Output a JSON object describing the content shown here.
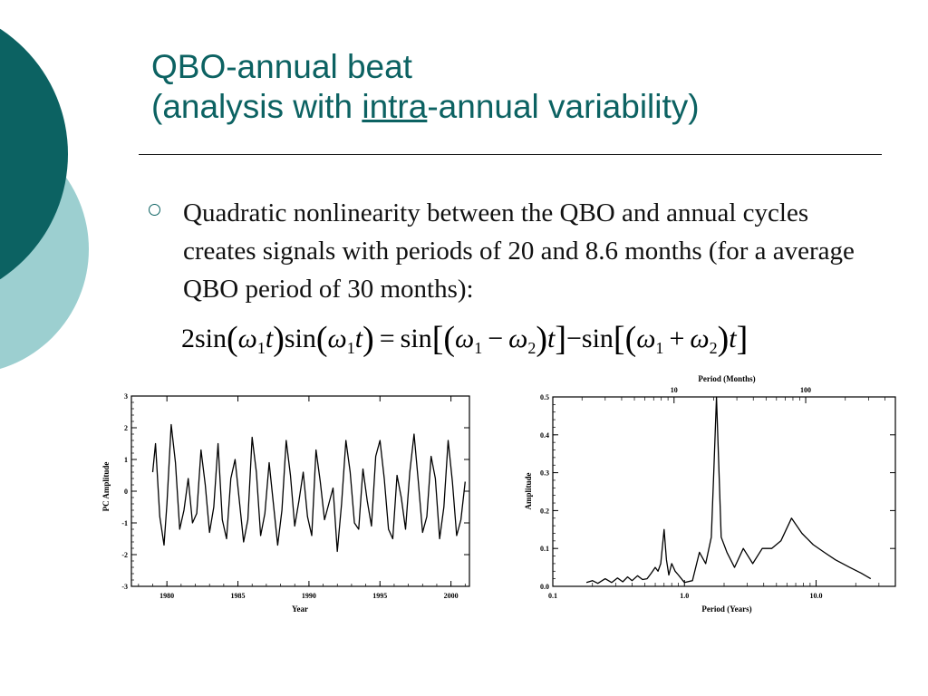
{
  "slide": {
    "title_line1": "QBO-annual beat",
    "title_line2_pre": "(analysis with ",
    "title_line2_u": "intra",
    "title_line2_post": "-annual variability)",
    "bullet": "Quadratic nonlinearity between the QBO and annual cycles creates signals with periods of 20 and 8.6 months (for a average QBO period of 30 months):",
    "equation": {
      "coef": "2",
      "sin": "sin",
      "omega": "ω",
      "t": "t",
      "sub1": "1",
      "sub2": "2",
      "equals": "=",
      "minus": "−",
      "plus": "+"
    },
    "colors": {
      "title": "#0c6262",
      "deco_dark": "#0c6262",
      "deco_light": "#9ccfd0"
    }
  },
  "chart_data": [
    {
      "type": "line",
      "xlabel": "Year",
      "ylabel": "PC Amplitude",
      "xlim": [
        1977.5,
        2001.3
      ],
      "ylim": [
        -3,
        3
      ],
      "xticks": [
        "1980",
        "1985",
        "1990",
        "1995",
        "2000"
      ],
      "xtick_values": [
        1980,
        1985,
        1990,
        1995,
        2000
      ],
      "yticks": [
        "3",
        "2",
        "1",
        "0",
        "-1",
        "-2",
        "-3"
      ],
      "ytick_values": [
        3,
        2,
        1,
        0,
        -1,
        -2,
        -3
      ],
      "x": [
        1979.0,
        1979.2,
        1979.5,
        1979.8,
        1980.0,
        1980.3,
        1980.6,
        1980.9,
        1981.2,
        1981.5,
        1981.8,
        1982.1,
        1982.4,
        1982.7,
        1983.0,
        1983.3,
        1983.6,
        1983.9,
        1984.2,
        1984.5,
        1984.8,
        1985.1,
        1985.4,
        1985.7,
        1986.0,
        1986.3,
        1986.6,
        1986.9,
        1987.2,
        1987.5,
        1987.8,
        1988.1,
        1988.4,
        1988.7,
        1989.0,
        1989.3,
        1989.6,
        1989.9,
        1990.2,
        1990.5,
        1990.8,
        1991.1,
        1991.4,
        1991.7,
        1992.0,
        1992.3,
        1992.6,
        1992.9,
        1993.2,
        1993.5,
        1993.8,
        1994.1,
        1994.4,
        1994.7,
        1995.0,
        1995.3,
        1995.6,
        1995.9,
        1996.2,
        1996.5,
        1996.8,
        1997.1,
        1997.4,
        1997.7,
        1998.0,
        1998.3,
        1998.6,
        1998.9,
        1999.2,
        1999.5,
        1999.8,
        2000.1,
        2000.4,
        2000.7,
        2001.0
      ],
      "values": [
        0.6,
        1.5,
        -0.8,
        -1.7,
        -0.4,
        2.1,
        0.9,
        -1.2,
        -0.6,
        0.4,
        -1.0,
        -0.7,
        1.3,
        0.2,
        -1.3,
        -0.5,
        1.5,
        -0.9,
        -1.5,
        0.4,
        1.0,
        -0.3,
        -1.6,
        -0.9,
        1.7,
        0.6,
        -1.4,
        -0.7,
        0.9,
        -0.4,
        -1.7,
        -0.6,
        1.6,
        0.5,
        -1.1,
        -0.3,
        0.6,
        -0.8,
        -1.4,
        1.3,
        0.3,
        -0.9,
        -0.4,
        0.1,
        -1.9,
        -0.4,
        1.6,
        0.6,
        -1.0,
        -1.2,
        0.7,
        -0.3,
        -1.1,
        1.1,
        1.6,
        0.4,
        -1.2,
        -1.5,
        0.5,
        -0.2,
        -1.2,
        0.6,
        1.8,
        0.3,
        -1.3,
        -0.8,
        1.1,
        0.4,
        -1.5,
        -0.5,
        1.6,
        0.3,
        -1.4,
        -0.9,
        0.3
      ]
    },
    {
      "type": "line",
      "title": "Period (Months)",
      "xlabel": "Period (Years)",
      "ylabel": "Amplitude",
      "xscale": "log",
      "xlim": [
        0.1,
        40
      ],
      "ylim": [
        0.0,
        0.5
      ],
      "xticks": [
        "0.1",
        "1.0",
        "10.0"
      ],
      "xtick_values": [
        0.1,
        1.0,
        10.0
      ],
      "top_xticks": [
        "10",
        "100"
      ],
      "top_xtick_values_months": [
        10,
        100
      ],
      "yticks": [
        "0.5",
        "0.4",
        "0.3",
        "0.2",
        "0.1",
        "0.0"
      ],
      "ytick_values": [
        0.5,
        0.4,
        0.3,
        0.2,
        0.1,
        0.0
      ],
      "x": [
        0.18,
        0.2,
        0.22,
        0.25,
        0.28,
        0.31,
        0.34,
        0.37,
        0.4,
        0.44,
        0.48,
        0.52,
        0.56,
        0.6,
        0.63,
        0.66,
        0.7,
        0.73,
        0.76,
        0.8,
        0.85,
        0.9,
        1.0,
        1.15,
        1.3,
        1.45,
        1.6,
        1.67,
        1.75,
        1.9,
        2.1,
        2.4,
        2.8,
        3.3,
        3.9,
        4.6,
        5.4,
        6.5,
        7.8,
        9.5,
        11.5,
        14,
        18,
        22,
        26
      ],
      "values": [
        0.01,
        0.015,
        0.008,
        0.02,
        0.01,
        0.022,
        0.012,
        0.025,
        0.015,
        0.028,
        0.018,
        0.02,
        0.035,
        0.05,
        0.04,
        0.06,
        0.15,
        0.07,
        0.03,
        0.06,
        0.04,
        0.03,
        0.01,
        0.015,
        0.09,
        0.06,
        0.13,
        0.3,
        0.5,
        0.13,
        0.09,
        0.05,
        0.1,
        0.06,
        0.1,
        0.1,
        0.12,
        0.18,
        0.14,
        0.11,
        0.09,
        0.07,
        0.05,
        0.035,
        0.02
      ]
    }
  ]
}
